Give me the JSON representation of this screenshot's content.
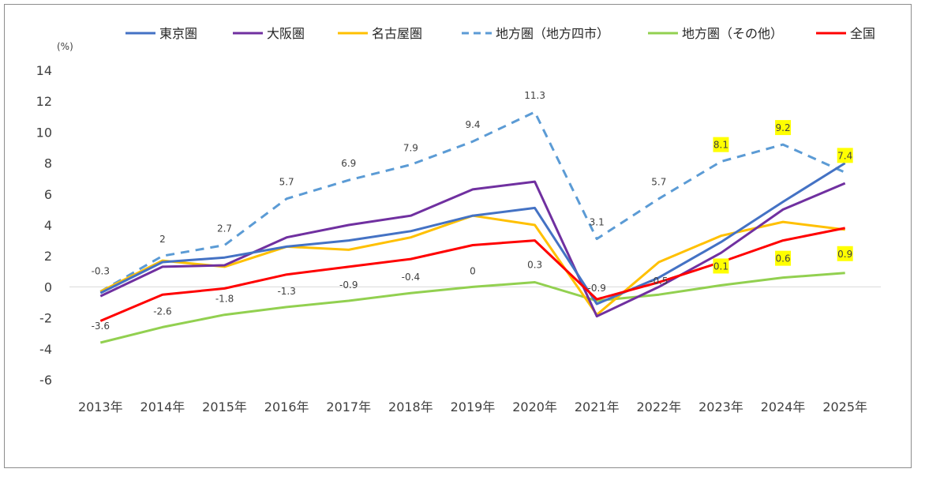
{
  "chart_data": {
    "type": "line",
    "yunit": "(%)",
    "ylim": [
      -6,
      14
    ],
    "yticks": [
      "14",
      "12",
      "10",
      "8",
      "6",
      "4",
      "2",
      "0",
      "-2",
      "-4",
      "-6"
    ],
    "categories": [
      "2013年",
      "2014年",
      "2015年",
      "2016年",
      "2017年",
      "2018年",
      "2019年",
      "2020年",
      "2021年",
      "2022年",
      "2023年",
      "2024年",
      "2025年"
    ],
    "grid": "zero-line only",
    "legend_position": "top",
    "series": [
      {
        "name": "東京圏",
        "color": "#4472c4",
        "dash": false,
        "values": [
          -0.4,
          1.6,
          1.9,
          2.6,
          3.0,
          3.6,
          4.6,
          5.1,
          -1.1,
          0.6,
          2.9,
          5.5,
          8.0
        ]
      },
      {
        "name": "大阪圏",
        "color": "#7030a0",
        "dash": false,
        "values": [
          -0.6,
          1.3,
          1.4,
          3.2,
          4.0,
          4.6,
          6.3,
          6.8,
          -1.9,
          0.0,
          2.2,
          5.0,
          6.7
        ]
      },
      {
        "name": "名古屋圏",
        "color": "#ffc000",
        "dash": false,
        "values": [
          -0.3,
          1.7,
          1.3,
          2.6,
          2.4,
          3.2,
          4.6,
          4.0,
          -1.8,
          1.6,
          3.3,
          4.2,
          3.7
        ]
      },
      {
        "name": "地方圏（地方四市）",
        "color": "#5b9bd5",
        "dash": true,
        "values": [
          -0.3,
          2.0,
          2.7,
          5.7,
          6.9,
          7.9,
          9.4,
          11.3,
          3.1,
          5.7,
          8.1,
          9.2,
          7.4
        ],
        "labels": [
          "-0.3",
          "2",
          "2.7",
          "5.7",
          "6.9",
          "7.9",
          "9.4",
          "11.3",
          "3.1",
          "5.7",
          "8.1",
          "9.2",
          "7.4"
        ]
      },
      {
        "name": "地方圏（その他）",
        "color": "#92d050",
        "dash": false,
        "values": [
          -3.6,
          -2.6,
          -1.8,
          -1.3,
          -0.9,
          -0.4,
          0.0,
          0.3,
          -0.9,
          -0.5,
          0.1,
          0.6,
          0.9
        ],
        "labels": [
          "-3.6",
          "-2.6",
          "-1.8",
          "-1.3",
          "-0.9",
          "-0.4",
          "0",
          "0.3",
          "-0.9",
          "-0.5",
          "0.1",
          "0.6",
          "0.9"
        ]
      },
      {
        "name": "全国",
        "color": "#ff0000",
        "dash": false,
        "values": [
          -2.2,
          -0.5,
          -0.1,
          0.8,
          1.3,
          1.8,
          2.7,
          3.0,
          -0.8,
          0.3,
          1.6,
          3.0,
          3.8
        ]
      }
    ],
    "highlighted_labels_color": "#ffff00"
  }
}
